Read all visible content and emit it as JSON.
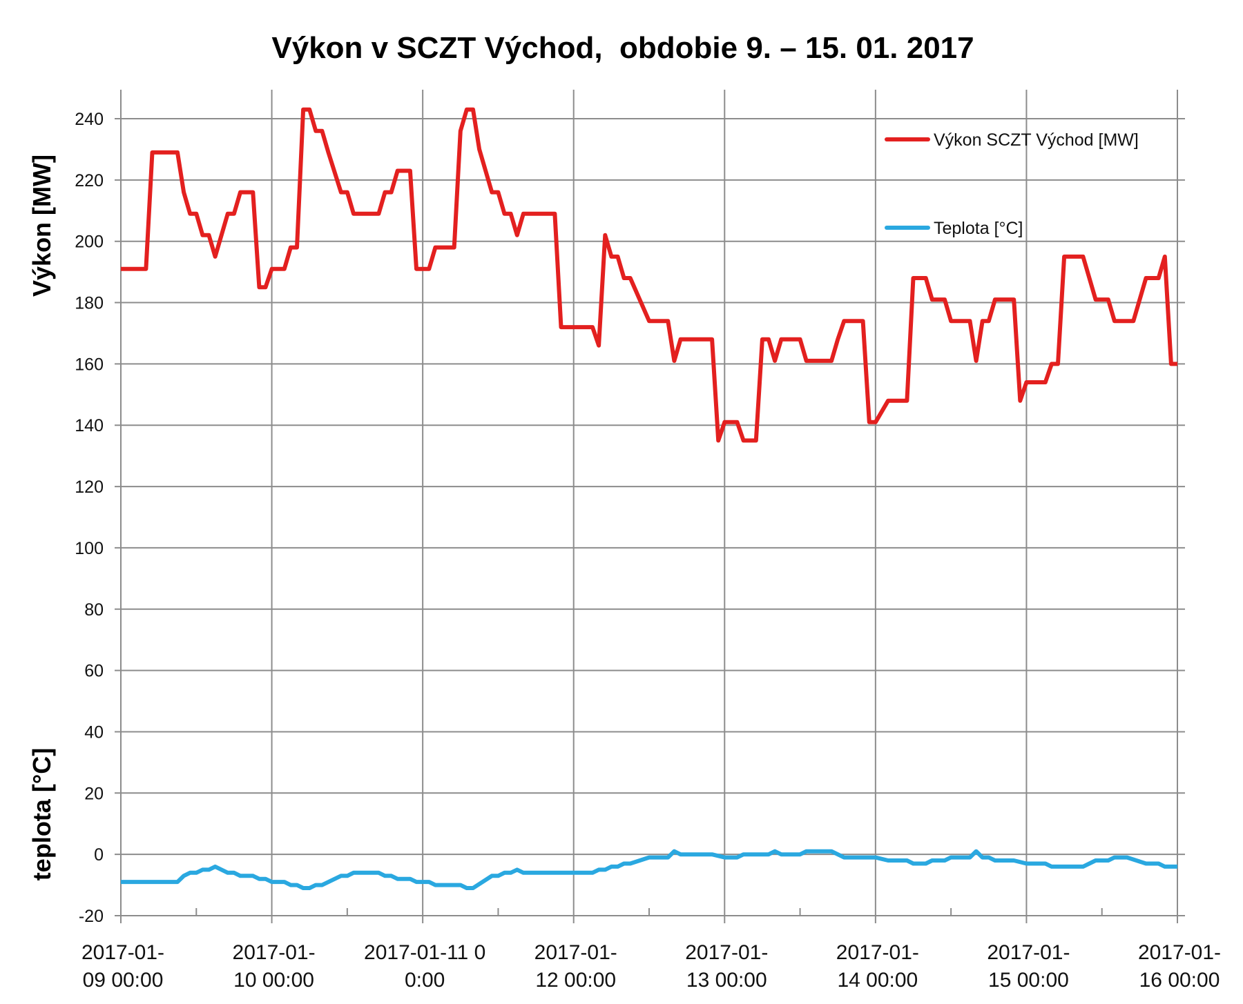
{
  "chart_data": {
    "type": "line",
    "title": "Výkon v SCZT Východ,  obdobie 9. – 15. 01. 2017",
    "ylabel_top": "Výkon [MW]",
    "ylabel_bottom": "teplota [°C]",
    "ylim": [
      -20,
      240
    ],
    "y_ticks": [
      "240",
      "220",
      "200",
      "180",
      "160",
      "140",
      "120",
      "100",
      "80",
      "60",
      "40",
      "20",
      "0",
      "-20"
    ],
    "xlim": [
      "2017-01-09 00:00",
      "2017-01-16 00:00"
    ],
    "x_ticks": [
      {
        "line1": "2017-01-",
        "line2": "09 00:00"
      },
      {
        "line1": "2017-01-",
        "line2": "10 00:00"
      },
      {
        "line1": "2017-01-11 0",
        "line2": "0:00"
      },
      {
        "line1": "2017-01-",
        "line2": "12 00:00"
      },
      {
        "line1": "2017-01-",
        "line2": "13 00:00"
      },
      {
        "line1": "2017-01-",
        "line2": "14 00:00"
      },
      {
        "line1": "2017-01-",
        "line2": "15 00:00"
      },
      {
        "line1": "2017-01-",
        "line2": "16 00:00"
      }
    ],
    "grid": true,
    "legend_position": "top-right",
    "series": [
      {
        "name": "Výkon SCZT Východ [MW]",
        "color": "#e3201f",
        "points": [
          [
            "2017-01-09 00:00",
            191
          ],
          [
            "2017-01-09 04:00",
            191
          ],
          [
            "2017-01-09 05:00",
            229
          ],
          [
            "2017-01-09 09:00",
            229
          ],
          [
            "2017-01-09 10:00",
            216
          ],
          [
            "2017-01-09 11:00",
            209
          ],
          [
            "2017-01-09 12:00",
            209
          ],
          [
            "2017-01-09 13:00",
            202
          ],
          [
            "2017-01-09 14:00",
            202
          ],
          [
            "2017-01-09 15:00",
            195
          ],
          [
            "2017-01-09 17:00",
            209
          ],
          [
            "2017-01-09 18:00",
            209
          ],
          [
            "2017-01-09 19:00",
            216
          ],
          [
            "2017-01-09 21:00",
            216
          ],
          [
            "2017-01-09 22:00",
            185
          ],
          [
            "2017-01-09 23:00",
            185
          ],
          [
            "2017-01-10 00:00",
            191
          ],
          [
            "2017-01-10 02:00",
            191
          ],
          [
            "2017-01-10 03:00",
            198
          ],
          [
            "2017-01-10 04:00",
            198
          ],
          [
            "2017-01-10 05:00",
            243
          ],
          [
            "2017-01-10 06:00",
            243
          ],
          [
            "2017-01-10 07:00",
            236
          ],
          [
            "2017-01-10 08:00",
            236
          ],
          [
            "2017-01-10 09:00",
            229
          ],
          [
            "2017-01-10 11:00",
            216
          ],
          [
            "2017-01-10 12:00",
            216
          ],
          [
            "2017-01-10 13:00",
            209
          ],
          [
            "2017-01-10 17:00",
            209
          ],
          [
            "2017-01-10 18:00",
            216
          ],
          [
            "2017-01-10 19:00",
            216
          ],
          [
            "2017-01-10 20:00",
            223
          ],
          [
            "2017-01-10 22:00",
            223
          ],
          [
            "2017-01-10 23:00",
            191
          ],
          [
            "2017-01-11 01:00",
            191
          ],
          [
            "2017-01-11 02:00",
            198
          ],
          [
            "2017-01-11 05:00",
            198
          ],
          [
            "2017-01-11 06:00",
            236
          ],
          [
            "2017-01-11 07:00",
            243
          ],
          [
            "2017-01-11 08:00",
            243
          ],
          [
            "2017-01-11 09:00",
            230
          ],
          [
            "2017-01-11 11:00",
            216
          ],
          [
            "2017-01-11 12:00",
            216
          ],
          [
            "2017-01-11 13:00",
            209
          ],
          [
            "2017-01-11 14:00",
            209
          ],
          [
            "2017-01-11 15:00",
            202
          ],
          [
            "2017-01-11 16:00",
            209
          ],
          [
            "2017-01-11 21:00",
            209
          ],
          [
            "2017-01-11 22:00",
            172
          ],
          [
            "2017-01-12 03:00",
            172
          ],
          [
            "2017-01-12 04:00",
            166
          ],
          [
            "2017-01-12 05:00",
            202
          ],
          [
            "2017-01-12 06:00",
            195
          ],
          [
            "2017-01-12 07:00",
            195
          ],
          [
            "2017-01-12 08:00",
            188
          ],
          [
            "2017-01-12 09:00",
            188
          ],
          [
            "2017-01-12 12:00",
            174
          ],
          [
            "2017-01-12 15:00",
            174
          ],
          [
            "2017-01-12 16:00",
            161
          ],
          [
            "2017-01-12 17:00",
            168
          ],
          [
            "2017-01-12 22:00",
            168
          ],
          [
            "2017-01-12 23:00",
            135
          ],
          [
            "2017-01-13 00:00",
            141
          ],
          [
            "2017-01-13 02:00",
            141
          ],
          [
            "2017-01-13 03:00",
            135
          ],
          [
            "2017-01-13 05:00",
            135
          ],
          [
            "2017-01-13 06:00",
            168
          ],
          [
            "2017-01-13 07:00",
            168
          ],
          [
            "2017-01-13 08:00",
            161
          ],
          [
            "2017-01-13 09:00",
            168
          ],
          [
            "2017-01-13 12:00",
            168
          ],
          [
            "2017-01-13 13:00",
            161
          ],
          [
            "2017-01-13 17:00",
            161
          ],
          [
            "2017-01-13 18:00",
            168
          ],
          [
            "2017-01-13 19:00",
            174
          ],
          [
            "2017-01-13 22:00",
            174
          ],
          [
            "2017-01-13 23:00",
            141
          ],
          [
            "2017-01-14 00:00",
            141
          ],
          [
            "2017-01-14 02:00",
            148
          ],
          [
            "2017-01-14 05:00",
            148
          ],
          [
            "2017-01-14 06:00",
            188
          ],
          [
            "2017-01-14 08:00",
            188
          ],
          [
            "2017-01-14 09:00",
            181
          ],
          [
            "2017-01-14 11:00",
            181
          ],
          [
            "2017-01-14 12:00",
            174
          ],
          [
            "2017-01-14 15:00",
            174
          ],
          [
            "2017-01-14 16:00",
            161
          ],
          [
            "2017-01-14 17:00",
            174
          ],
          [
            "2017-01-14 18:00",
            174
          ],
          [
            "2017-01-14 19:00",
            181
          ],
          [
            "2017-01-14 22:00",
            181
          ],
          [
            "2017-01-14 23:00",
            148
          ],
          [
            "2017-01-15 00:00",
            154
          ],
          [
            "2017-01-15 03:00",
            154
          ],
          [
            "2017-01-15 04:00",
            160
          ],
          [
            "2017-01-15 05:00",
            160
          ],
          [
            "2017-01-15 06:00",
            195
          ],
          [
            "2017-01-15 09:00",
            195
          ],
          [
            "2017-01-15 11:00",
            181
          ],
          [
            "2017-01-15 13:00",
            181
          ],
          [
            "2017-01-15 14:00",
            174
          ],
          [
            "2017-01-15 17:00",
            174
          ],
          [
            "2017-01-15 19:00",
            188
          ],
          [
            "2017-01-15 21:00",
            188
          ],
          [
            "2017-01-15 22:00",
            195
          ],
          [
            "2017-01-15 23:00",
            160
          ],
          [
            "2017-01-16 00:00",
            160
          ]
        ]
      },
      {
        "name": "Teplota [°C]",
        "color": "#2aa8e0",
        "points": [
          [
            "2017-01-09 00:00",
            -9
          ],
          [
            "2017-01-09 09:00",
            -9
          ],
          [
            "2017-01-09 10:00",
            -7
          ],
          [
            "2017-01-09 11:00",
            -6
          ],
          [
            "2017-01-09 12:00",
            -6
          ],
          [
            "2017-01-09 13:00",
            -5
          ],
          [
            "2017-01-09 14:00",
            -5
          ],
          [
            "2017-01-09 15:00",
            -4
          ],
          [
            "2017-01-09 17:00",
            -6
          ],
          [
            "2017-01-09 18:00",
            -6
          ],
          [
            "2017-01-09 19:00",
            -7
          ],
          [
            "2017-01-09 21:00",
            -7
          ],
          [
            "2017-01-09 22:00",
            -8
          ],
          [
            "2017-01-09 23:00",
            -8
          ],
          [
            "2017-01-10 00:00",
            -9
          ],
          [
            "2017-01-10 02:00",
            -9
          ],
          [
            "2017-01-10 03:00",
            -10
          ],
          [
            "2017-01-10 04:00",
            -10
          ],
          [
            "2017-01-10 05:00",
            -11
          ],
          [
            "2017-01-10 06:00",
            -11
          ],
          [
            "2017-01-10 07:00",
            -10
          ],
          [
            "2017-01-10 08:00",
            -10
          ],
          [
            "2017-01-10 11:00",
            -7
          ],
          [
            "2017-01-10 12:00",
            -7
          ],
          [
            "2017-01-10 13:00",
            -6
          ],
          [
            "2017-01-10 17:00",
            -6
          ],
          [
            "2017-01-10 18:00",
            -7
          ],
          [
            "2017-01-10 19:00",
            -7
          ],
          [
            "2017-01-10 20:00",
            -8
          ],
          [
            "2017-01-10 22:00",
            -8
          ],
          [
            "2017-01-10 23:00",
            -9
          ],
          [
            "2017-01-11 01:00",
            -9
          ],
          [
            "2017-01-11 02:00",
            -10
          ],
          [
            "2017-01-11 06:00",
            -10
          ],
          [
            "2017-01-11 07:00",
            -11
          ],
          [
            "2017-01-11 08:00",
            -11
          ],
          [
            "2017-01-11 11:00",
            -7
          ],
          [
            "2017-01-11 12:00",
            -7
          ],
          [
            "2017-01-11 13:00",
            -6
          ],
          [
            "2017-01-11 14:00",
            -6
          ],
          [
            "2017-01-11 15:00",
            -5
          ],
          [
            "2017-01-11 16:00",
            -6
          ],
          [
            "2017-01-12 03:00",
            -6
          ],
          [
            "2017-01-12 04:00",
            -5
          ],
          [
            "2017-01-12 05:00",
            -5
          ],
          [
            "2017-01-12 06:00",
            -4
          ],
          [
            "2017-01-12 07:00",
            -4
          ],
          [
            "2017-01-12 08:00",
            -3
          ],
          [
            "2017-01-12 09:00",
            -3
          ],
          [
            "2017-01-12 12:00",
            -1
          ],
          [
            "2017-01-12 15:00",
            -1
          ],
          [
            "2017-01-12 16:00",
            1
          ],
          [
            "2017-01-12 17:00",
            0
          ],
          [
            "2017-01-12 22:00",
            0
          ],
          [
            "2017-01-13 00:00",
            -1
          ],
          [
            "2017-01-13 02:00",
            -1
          ],
          [
            "2017-01-13 03:00",
            0
          ],
          [
            "2017-01-13 07:00",
            0
          ],
          [
            "2017-01-13 08:00",
            1
          ],
          [
            "2017-01-13 09:00",
            0
          ],
          [
            "2017-01-13 12:00",
            0
          ],
          [
            "2017-01-13 13:00",
            1
          ],
          [
            "2017-01-13 17:00",
            1
          ],
          [
            "2017-01-13 19:00",
            -1
          ],
          [
            "2017-01-14 00:00",
            -1
          ],
          [
            "2017-01-14 02:00",
            -2
          ],
          [
            "2017-01-14 05:00",
            -2
          ],
          [
            "2017-01-14 06:00",
            -3
          ],
          [
            "2017-01-14 08:00",
            -3
          ],
          [
            "2017-01-14 09:00",
            -2
          ],
          [
            "2017-01-14 11:00",
            -2
          ],
          [
            "2017-01-14 12:00",
            -1
          ],
          [
            "2017-01-14 15:00",
            -1
          ],
          [
            "2017-01-14 16:00",
            1
          ],
          [
            "2017-01-14 17:00",
            -1
          ],
          [
            "2017-01-14 18:00",
            -1
          ],
          [
            "2017-01-14 19:00",
            -2
          ],
          [
            "2017-01-14 22:00",
            -2
          ],
          [
            "2017-01-15 00:00",
            -3
          ],
          [
            "2017-01-15 03:00",
            -3
          ],
          [
            "2017-01-15 04:00",
            -4
          ],
          [
            "2017-01-15 09:00",
            -4
          ],
          [
            "2017-01-15 11:00",
            -2
          ],
          [
            "2017-01-15 13:00",
            -2
          ],
          [
            "2017-01-15 14:00",
            -1
          ],
          [
            "2017-01-15 16:00",
            -1
          ],
          [
            "2017-01-15 19:00",
            -3
          ],
          [
            "2017-01-15 21:00",
            -3
          ],
          [
            "2017-01-15 22:00",
            -4
          ],
          [
            "2017-01-16 00:00",
            -4
          ]
        ]
      }
    ]
  }
}
